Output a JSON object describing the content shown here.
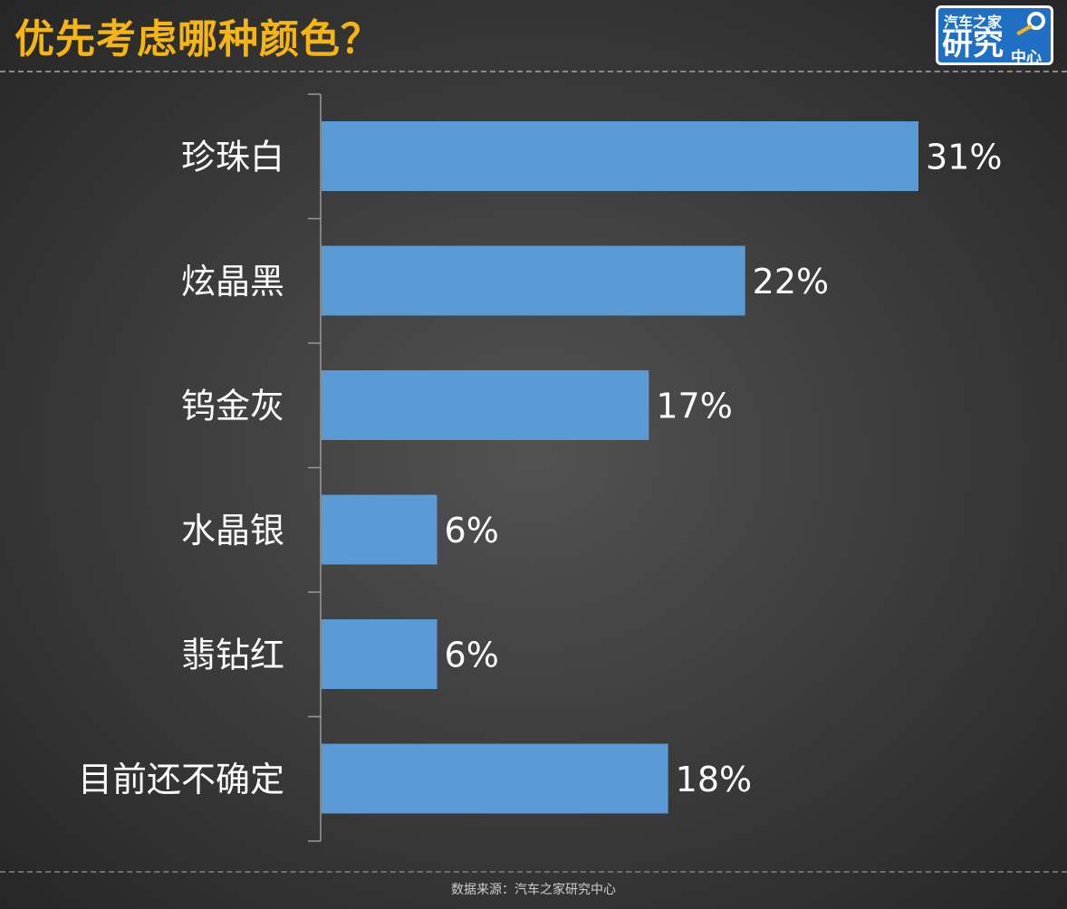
{
  "header": {
    "title": "优先考虑哪种颜色？"
  },
  "logo": {
    "line1": "汽车之家",
    "line2": "研究",
    "line3": "中心"
  },
  "footer": {
    "source": "数据来源：汽车之家研究中心"
  },
  "colors": {
    "bar": "#5a9bd5",
    "title": "#f7b512",
    "text": "#ffffff",
    "axis": "#9a9a9a"
  },
  "chart_data": {
    "type": "bar",
    "orientation": "horizontal",
    "title": "优先考虑哪种颜色？",
    "categories": [
      "珍珠白",
      "炫晶黑",
      "钨金灰",
      "水晶银",
      "翡钻红",
      "目前还不确定"
    ],
    "values": [
      31,
      22,
      17,
      6,
      6,
      18
    ],
    "data_labels": [
      "31%",
      "22%",
      "17%",
      "6%",
      "6%",
      "18%"
    ],
    "unit": "%",
    "xlim": [
      0,
      31
    ],
    "grid": false,
    "legend": "none"
  }
}
